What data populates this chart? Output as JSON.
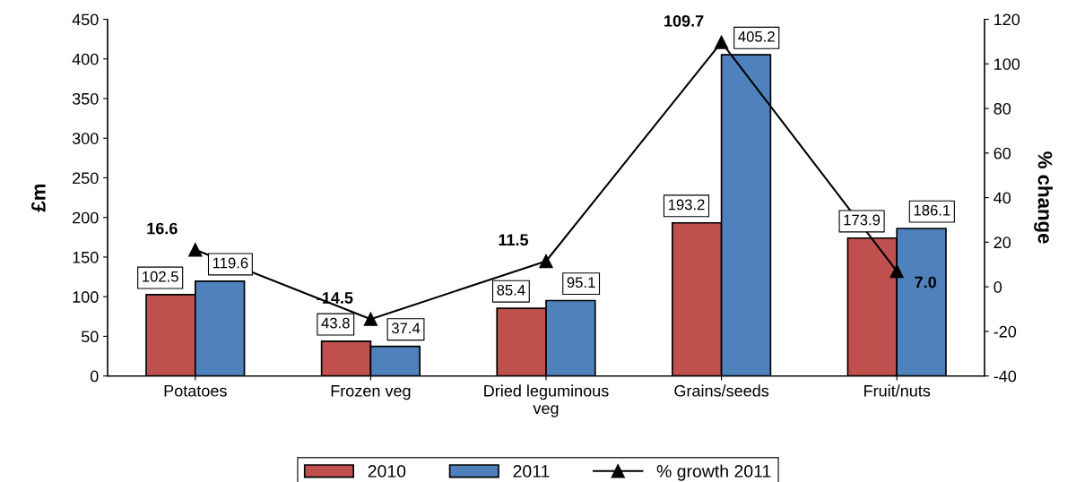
{
  "chart_data": {
    "type": "bar",
    "ylabel": "£m",
    "y2label": "% change",
    "categories": [
      "Potatoes",
      "Frozen veg",
      "Dried leguminous\nveg",
      "Grains/seeds",
      "Fruit/nuts"
    ],
    "series": [
      {
        "name": "2010",
        "color": "#c0504d",
        "values": [
          102.5,
          43.8,
          85.4,
          193.2,
          173.9
        ]
      },
      {
        "name": "2011",
        "color": "#4f81bd",
        "values": [
          119.6,
          37.4,
          95.1,
          405.2,
          186.1
        ]
      },
      {
        "name": "% growth 2011",
        "type": "line",
        "axis": "y2",
        "color": "#000000",
        "marker": "triangle",
        "values": [
          16.6,
          -14.5,
          11.5,
          109.7,
          7.0
        ],
        "value_labels": [
          "16.6",
          "-14.5",
          "11.5",
          "109.7",
          "7.0"
        ]
      }
    ],
    "ylim": [
      0,
      450
    ],
    "yticks": [
      0,
      50,
      100,
      150,
      200,
      250,
      300,
      350,
      400,
      450
    ],
    "y2lim": [
      -40,
      120
    ],
    "y2ticks": [
      -40,
      -20,
      0,
      20,
      40,
      60,
      80,
      100,
      120
    ],
    "data_labels": true,
    "grid": false,
    "legend": "bottom"
  }
}
